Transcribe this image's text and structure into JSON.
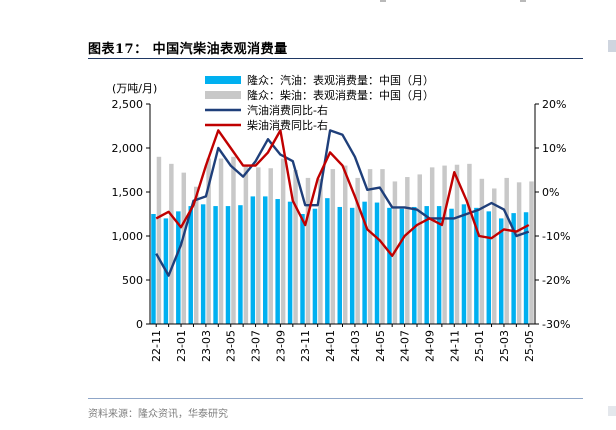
{
  "header": {
    "title": "图表17：  中国汽柴油表观消费量",
    "source": "资料来源：隆众资讯，华泰研究"
  },
  "chart_data": {
    "type": "bar",
    "ylabel": "(万吨/月)",
    "ylim": [
      0,
      2500
    ],
    "yticks": [
      "0",
      "500",
      "1,000",
      "1,500",
      "2,000",
      "2,500"
    ],
    "y2lim": [
      -30,
      20
    ],
    "y2ticks": [
      "-30%",
      "-20%",
      "-10%",
      "0%",
      "10%",
      "20%"
    ],
    "x": [
      "22-11",
      "22-12",
      "23-01",
      "23-02",
      "23-03",
      "23-04",
      "23-05",
      "23-06",
      "23-07",
      "23-08",
      "23-09",
      "23-10",
      "23-11",
      "23-12",
      "24-01",
      "24-02",
      "24-03",
      "24-04",
      "24-05",
      "24-06",
      "24-07",
      "24-08",
      "24-09",
      "24-10",
      "24-11",
      "24-12",
      "25-01",
      "25-02",
      "25-03",
      "25-04",
      "25-05"
    ],
    "xtick_labels": [
      "22-11",
      "23-01",
      "23-03",
      "23-05",
      "23-07",
      "23-09",
      "23-11",
      "24-01",
      "24-03",
      "24-05",
      "24-07",
      "24-09",
      "24-11",
      "25-01",
      "25-03",
      "25-05"
    ],
    "legend_position": "top",
    "series": [
      {
        "name": "隆众：汽油：表观消费量：中国（月）",
        "kind": "bar",
        "axis": "left",
        "color": "#00b0f0",
        "values": [
          1250,
          1200,
          1280,
          1340,
          1360,
          1340,
          1340,
          1350,
          1450,
          1450,
          1420,
          1390,
          1250,
          1310,
          1430,
          1330,
          1320,
          1390,
          1380,
          1320,
          1310,
          1330,
          1340,
          1340,
          1310,
          1360,
          1320,
          1280,
          1200,
          1260,
          1270
        ]
      },
      {
        "name": "隆众：柴油：表观消费量：中国（月）",
        "kind": "bar",
        "axis": "left",
        "color": "#c8c8c8",
        "values": [
          1900,
          1820,
          1720,
          1560,
          1880,
          1880,
          1900,
          1810,
          1780,
          1770,
          1880,
          1750,
          1660,
          1650,
          1760,
          1800,
          1660,
          1760,
          1760,
          1620,
          1670,
          1700,
          1780,
          1800,
          1810,
          1820,
          1650,
          1540,
          1660,
          1610,
          1620
        ]
      },
      {
        "name": "汽油消费同比-右",
        "kind": "line",
        "axis": "right",
        "color": "#1f3f7a",
        "values": [
          -14,
          -19,
          -12,
          -2,
          -1,
          10,
          6,
          3.5,
          7,
          12,
          8.5,
          7,
          -3,
          -3,
          14,
          13,
          8,
          0.5,
          1,
          -3.5,
          -3.5,
          -4,
          -6,
          -6,
          -6,
          -5,
          -4,
          -2.5,
          -4,
          -10,
          -9
        ]
      },
      {
        "name": "柴油消费同比-右",
        "kind": "line",
        "axis": "right",
        "color": "#c00000",
        "values": [
          -6,
          -4.5,
          -8,
          -3,
          6,
          14,
          10,
          6,
          6,
          9,
          14,
          -2,
          -7.5,
          3,
          9,
          6,
          -1,
          -8.5,
          -11,
          -14.5,
          -10,
          -7.5,
          -6,
          -7.5,
          4.5,
          -2,
          -10,
          -10.5,
          -8.5,
          -9,
          -7.5
        ]
      }
    ]
  }
}
